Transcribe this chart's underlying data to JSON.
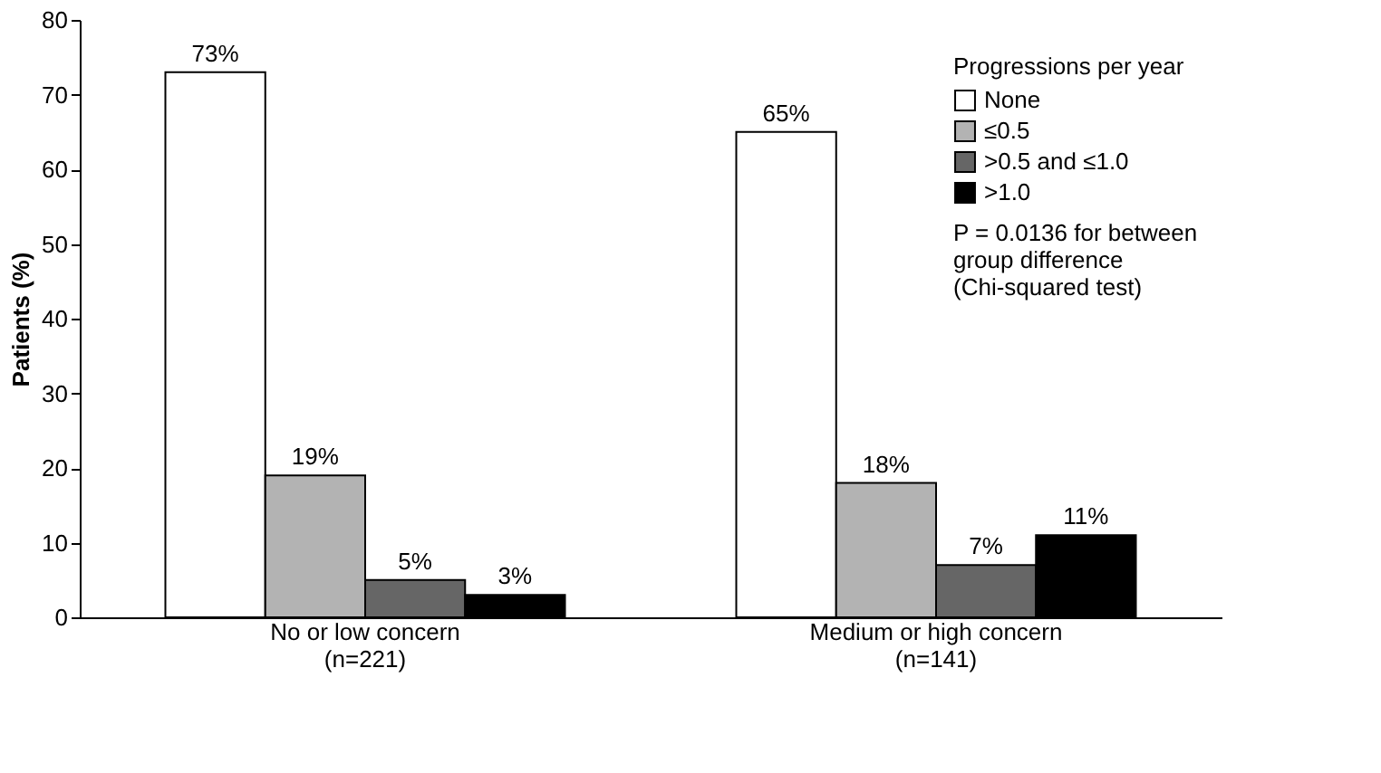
{
  "chart_data": {
    "type": "bar",
    "ylabel": "Patients (%)",
    "legend_title": "Progressions per year",
    "categories": [
      "No or low concern\n(n=221)",
      "Medium or high concern\n(n=141)"
    ],
    "series": [
      {
        "name": "None",
        "color": "#ffffff",
        "values": [
          73,
          65
        ],
        "value_labels": [
          "73%",
          "65%"
        ]
      },
      {
        "name": "≤0.5",
        "color": "#b3b3b3",
        "values": [
          19,
          18
        ],
        "value_labels": [
          "19%",
          "18%"
        ]
      },
      {
        "name": ">0.5 and ≤1.0",
        "color": "#666666",
        "values": [
          5,
          7
        ],
        "value_labels": [
          "5%",
          "7%"
        ]
      },
      {
        "name": ">1.0",
        "color": "#000000",
        "values": [
          3,
          11
        ],
        "value_labels": [
          "3%",
          "11%"
        ]
      }
    ],
    "ylim": [
      0,
      80
    ],
    "yticks": [
      0,
      10,
      20,
      30,
      40,
      50,
      60,
      70,
      80
    ],
    "grid": false,
    "legend": "top right",
    "annotations": [
      "P = 0.0136 for between\ngroup difference\n(Chi-squared test)"
    ]
  }
}
